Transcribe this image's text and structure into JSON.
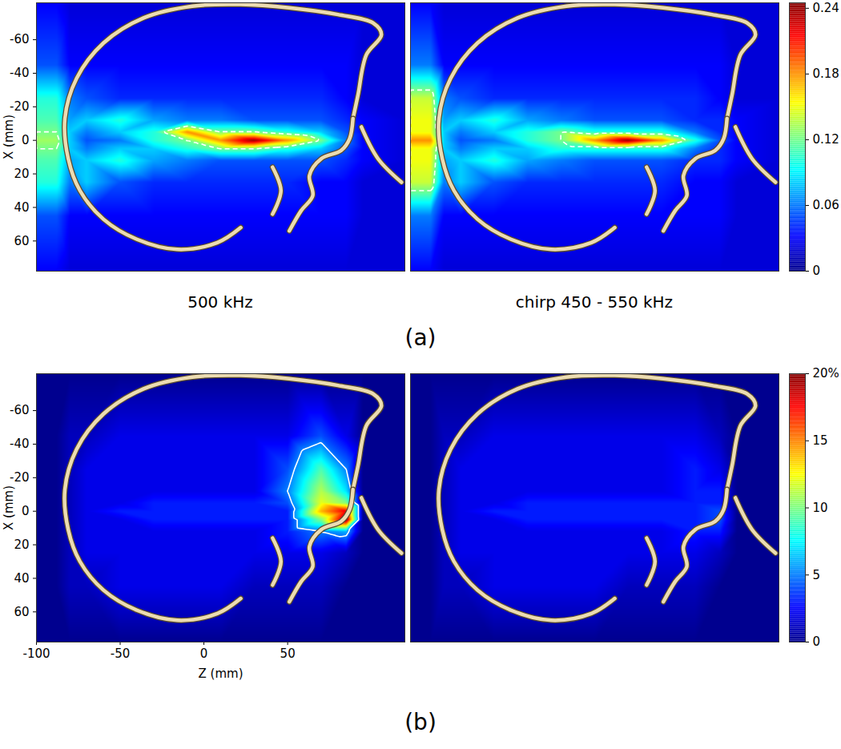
{
  "chart_data": {
    "type": "heatmap",
    "xlim": [
      -100,
      120
    ],
    "ylim": [
      -82,
      78
    ],
    "z": [
      -100,
      -88,
      -80,
      -70,
      -50,
      -30,
      -10,
      10,
      30,
      50,
      70,
      85,
      95,
      120
    ],
    "x": [
      -82,
      -45,
      -25,
      -12,
      -5,
      0,
      5,
      12,
      25,
      45,
      78
    ],
    "outline": [
      [
        [
          22,
          52
        ],
        [
          8,
          61
        ],
        [
          -16,
          65
        ],
        [
          -40,
          59
        ],
        [
          -60,
          47
        ],
        [
          -74,
          30
        ],
        [
          -81,
          11
        ],
        [
          -83,
          -13
        ],
        [
          -76,
          -37
        ],
        [
          -60,
          -58
        ],
        [
          -36,
          -73
        ],
        [
          -7,
          -80
        ],
        [
          22,
          -81
        ],
        [
          51,
          -79
        ],
        [
          80,
          -75
        ],
        [
          101,
          -70
        ],
        [
          106,
          -63
        ],
        [
          97,
          -51
        ],
        [
          92,
          -27
        ],
        [
          89,
          -13
        ]
      ],
      [
        [
          89,
          -13
        ],
        [
          87,
          -1
        ],
        [
          82,
          6
        ],
        [
          70,
          11
        ],
        [
          63,
          21
        ],
        [
          65,
          33
        ],
        [
          58,
          42
        ],
        [
          51,
          54
        ]
      ],
      [
        [
          94,
          -8
        ],
        [
          104,
          11
        ],
        [
          118,
          25
        ]
      ],
      [
        [
          41,
          16
        ],
        [
          46,
          30
        ],
        [
          41,
          44
        ]
      ]
    ],
    "groups": [
      {
        "label": "(a)",
        "tick_labels": "y",
        "ylabel": "X (mm)",
        "yticks": [
          -60,
          -40,
          -20,
          0,
          20,
          40,
          60
        ],
        "contour_level": 0.12,
        "line_style": "dashed",
        "colorbar": {
          "lim": [
            0,
            0.245
          ],
          "ticks": [
            0,
            0.06,
            0.12,
            0.18,
            0.24
          ]
        },
        "panels": [
          {
            "title": "500 kHz",
            "values": [
              [
                0.03,
                0.03,
                0.02,
                0.02,
                0.02,
                0.02,
                0.02,
                0.02,
                0.02,
                0.02,
                0.02,
                0.02,
                0.02,
                0.02
              ],
              [
                0.05,
                0.05,
                0.03,
                0.03,
                0.03,
                0.03,
                0.03,
                0.03,
                0.03,
                0.03,
                0.03,
                0.03,
                0.02,
                0.02
              ],
              [
                0.1,
                0.1,
                0.06,
                0.05,
                0.04,
                0.04,
                0.04,
                0.04,
                0.04,
                0.04,
                0.04,
                0.03,
                0.02,
                0.02
              ],
              [
                0.11,
                0.11,
                0.07,
                0.08,
                0.1,
                0.07,
                0.06,
                0.06,
                0.05,
                0.05,
                0.05,
                0.04,
                0.03,
                0.02
              ],
              [
                0.12,
                0.12,
                0.08,
                0.06,
                0.08,
                0.1,
                0.18,
                0.12,
                0.12,
                0.1,
                0.08,
                0.05,
                0.03,
                0.02
              ],
              [
                0.13,
                0.13,
                0.08,
                0.05,
                0.06,
                0.1,
                0.12,
                0.18,
                0.24,
                0.18,
                0.12,
                0.06,
                0.03,
                0.02
              ],
              [
                0.12,
                0.12,
                0.08,
                0.06,
                0.08,
                0.08,
                0.1,
                0.12,
                0.12,
                0.1,
                0.08,
                0.05,
                0.03,
                0.02
              ],
              [
                0.11,
                0.11,
                0.07,
                0.08,
                0.1,
                0.07,
                0.06,
                0.05,
                0.05,
                0.05,
                0.05,
                0.04,
                0.03,
                0.02
              ],
              [
                0.1,
                0.1,
                0.06,
                0.08,
                0.05,
                0.04,
                0.04,
                0.04,
                0.04,
                0.04,
                0.03,
                0.03,
                0.02,
                0.02
              ],
              [
                0.05,
                0.05,
                0.03,
                0.03,
                0.03,
                0.03,
                0.03,
                0.03,
                0.03,
                0.03,
                0.03,
                0.03,
                0.02,
                0.02
              ],
              [
                0.03,
                0.03,
                0.02,
                0.02,
                0.02,
                0.02,
                0.02,
                0.02,
                0.02,
                0.02,
                0.02,
                0.02,
                0.02,
                0.02
              ]
            ]
          },
          {
            "title": "chirp 450 - 550 kHz",
            "values": [
              [
                0.03,
                0.03,
                0.02,
                0.02,
                0.02,
                0.02,
                0.02,
                0.02,
                0.02,
                0.02,
                0.02,
                0.02,
                0.02,
                0.02
              ],
              [
                0.06,
                0.06,
                0.03,
                0.03,
                0.03,
                0.03,
                0.03,
                0.03,
                0.03,
                0.03,
                0.03,
                0.03,
                0.02,
                0.02
              ],
              [
                0.14,
                0.14,
                0.06,
                0.05,
                0.04,
                0.04,
                0.04,
                0.04,
                0.04,
                0.04,
                0.04,
                0.03,
                0.02,
                0.02
              ],
              [
                0.15,
                0.15,
                0.07,
                0.08,
                0.1,
                0.07,
                0.06,
                0.05,
                0.05,
                0.05,
                0.04,
                0.04,
                0.03,
                0.02
              ],
              [
                0.15,
                0.15,
                0.08,
                0.06,
                0.08,
                0.1,
                0.12,
                0.1,
                0.1,
                0.1,
                0.06,
                0.04,
                0.03,
                0.02
              ],
              [
                0.18,
                0.18,
                0.08,
                0.05,
                0.06,
                0.1,
                0.12,
                0.18,
                0.24,
                0.18,
                0.1,
                0.05,
                0.03,
                0.02
              ],
              [
                0.15,
                0.15,
                0.08,
                0.06,
                0.08,
                0.08,
                0.1,
                0.1,
                0.1,
                0.1,
                0.06,
                0.04,
                0.03,
                0.02
              ],
              [
                0.15,
                0.15,
                0.07,
                0.08,
                0.1,
                0.07,
                0.06,
                0.05,
                0.05,
                0.05,
                0.04,
                0.04,
                0.03,
                0.02
              ],
              [
                0.14,
                0.14,
                0.06,
                0.08,
                0.05,
                0.04,
                0.04,
                0.04,
                0.04,
                0.04,
                0.03,
                0.03,
                0.02,
                0.02
              ],
              [
                0.06,
                0.06,
                0.03,
                0.03,
                0.03,
                0.03,
                0.03,
                0.03,
                0.03,
                0.03,
                0.03,
                0.03,
                0.02,
                0.02
              ],
              [
                0.03,
                0.03,
                0.02,
                0.02,
                0.02,
                0.02,
                0.02,
                0.02,
                0.02,
                0.02,
                0.02,
                0.02,
                0.02,
                0.02
              ]
            ]
          }
        ]
      },
      {
        "label": "(b)",
        "tick_labels": true,
        "xlabel": "Z (mm)",
        "ylabel": "X (mm)",
        "xticks": [
          -100,
          -50,
          0,
          50
        ],
        "yticks": [
          -60,
          -40,
          -20,
          0,
          20,
          40,
          60
        ],
        "contour_level": 5,
        "line_style": "solid",
        "colorbar": {
          "lim": [
            0,
            20
          ],
          "ticks": [
            0,
            5,
            10,
            15,
            {
              "value": 20,
              "label": "20%"
            }
          ]
        },
        "panels": [
          {
            "values": [
              [
                0,
                0,
                0,
                0,
                0,
                0,
                0,
                0,
                0,
                0,
                0,
                0,
                0,
                0
              ],
              [
                0,
                0,
                1,
                1,
                2,
                2,
                2,
                2,
                2,
                2,
                4,
                2,
                0,
                0
              ],
              [
                0,
                0,
                1,
                2,
                2,
                2,
                2,
                2,
                2,
                4,
                9,
                5,
                0,
                0
              ],
              [
                0,
                0,
                1,
                2,
                2,
                2,
                2,
                2,
                2,
                5,
                11,
                7,
                0,
                0
              ],
              [
                0,
                0,
                1,
                2,
                2,
                3,
                3,
                3,
                3,
                4,
                12,
                10,
                0,
                0
              ],
              [
                0,
                0,
                1,
                2,
                3,
                3,
                3,
                3,
                3,
                3,
                14,
                18,
                0,
                0
              ],
              [
                0,
                0,
                1,
                2,
                2,
                3,
                3,
                3,
                3,
                3,
                10,
                20,
                0,
                0
              ],
              [
                0,
                0,
                1,
                2,
                2,
                2,
                2,
                2,
                2,
                3,
                5,
                6,
                0,
                0
              ],
              [
                0,
                0,
                1,
                2,
                2,
                2,
                2,
                2,
                2,
                2,
                2,
                1,
                0,
                0
              ],
              [
                0,
                0,
                1,
                1,
                2,
                2,
                2,
                2,
                1,
                1,
                1,
                0,
                0,
                0
              ],
              [
                0,
                0,
                0,
                0,
                0,
                0,
                0,
                0,
                0,
                0,
                0,
                0,
                0,
                0
              ]
            ]
          },
          {
            "values": [
              [
                0,
                0,
                0,
                0,
                0,
                0,
                0,
                0,
                0,
                0,
                0,
                0,
                0,
                0
              ],
              [
                0,
                0,
                1,
                1,
                2,
                2,
                2,
                2,
                2,
                2,
                2,
                1,
                0,
                0
              ],
              [
                0,
                0,
                1,
                2,
                2,
                2,
                2,
                2,
                2,
                2,
                3,
                2,
                0,
                0
              ],
              [
                0,
                0,
                1,
                2,
                2,
                2,
                2,
                2,
                2,
                2,
                3,
                3,
                0,
                0
              ],
              [
                0,
                0,
                1,
                2,
                2,
                3,
                3,
                3,
                3,
                3,
                3,
                3,
                0,
                0
              ],
              [
                0,
                0,
                1,
                2,
                3,
                3,
                3,
                3,
                3,
                3,
                3,
                4,
                0,
                0
              ],
              [
                0,
                0,
                1,
                2,
                2,
                3,
                3,
                3,
                3,
                3,
                3,
                4,
                0,
                0
              ],
              [
                0,
                0,
                1,
                2,
                2,
                2,
                2,
                2,
                2,
                2,
                3,
                3,
                0,
                0
              ],
              [
                0,
                0,
                1,
                2,
                2,
                2,
                2,
                2,
                2,
                2,
                2,
                1,
                0,
                0
              ],
              [
                0,
                0,
                1,
                1,
                2,
                2,
                2,
                2,
                1,
                1,
                1,
                0,
                0,
                0
              ],
              [
                0,
                0,
                0,
                0,
                0,
                0,
                0,
                0,
                0,
                0,
                0,
                0,
                0,
                0
              ]
            ]
          }
        ]
      }
    ]
  }
}
